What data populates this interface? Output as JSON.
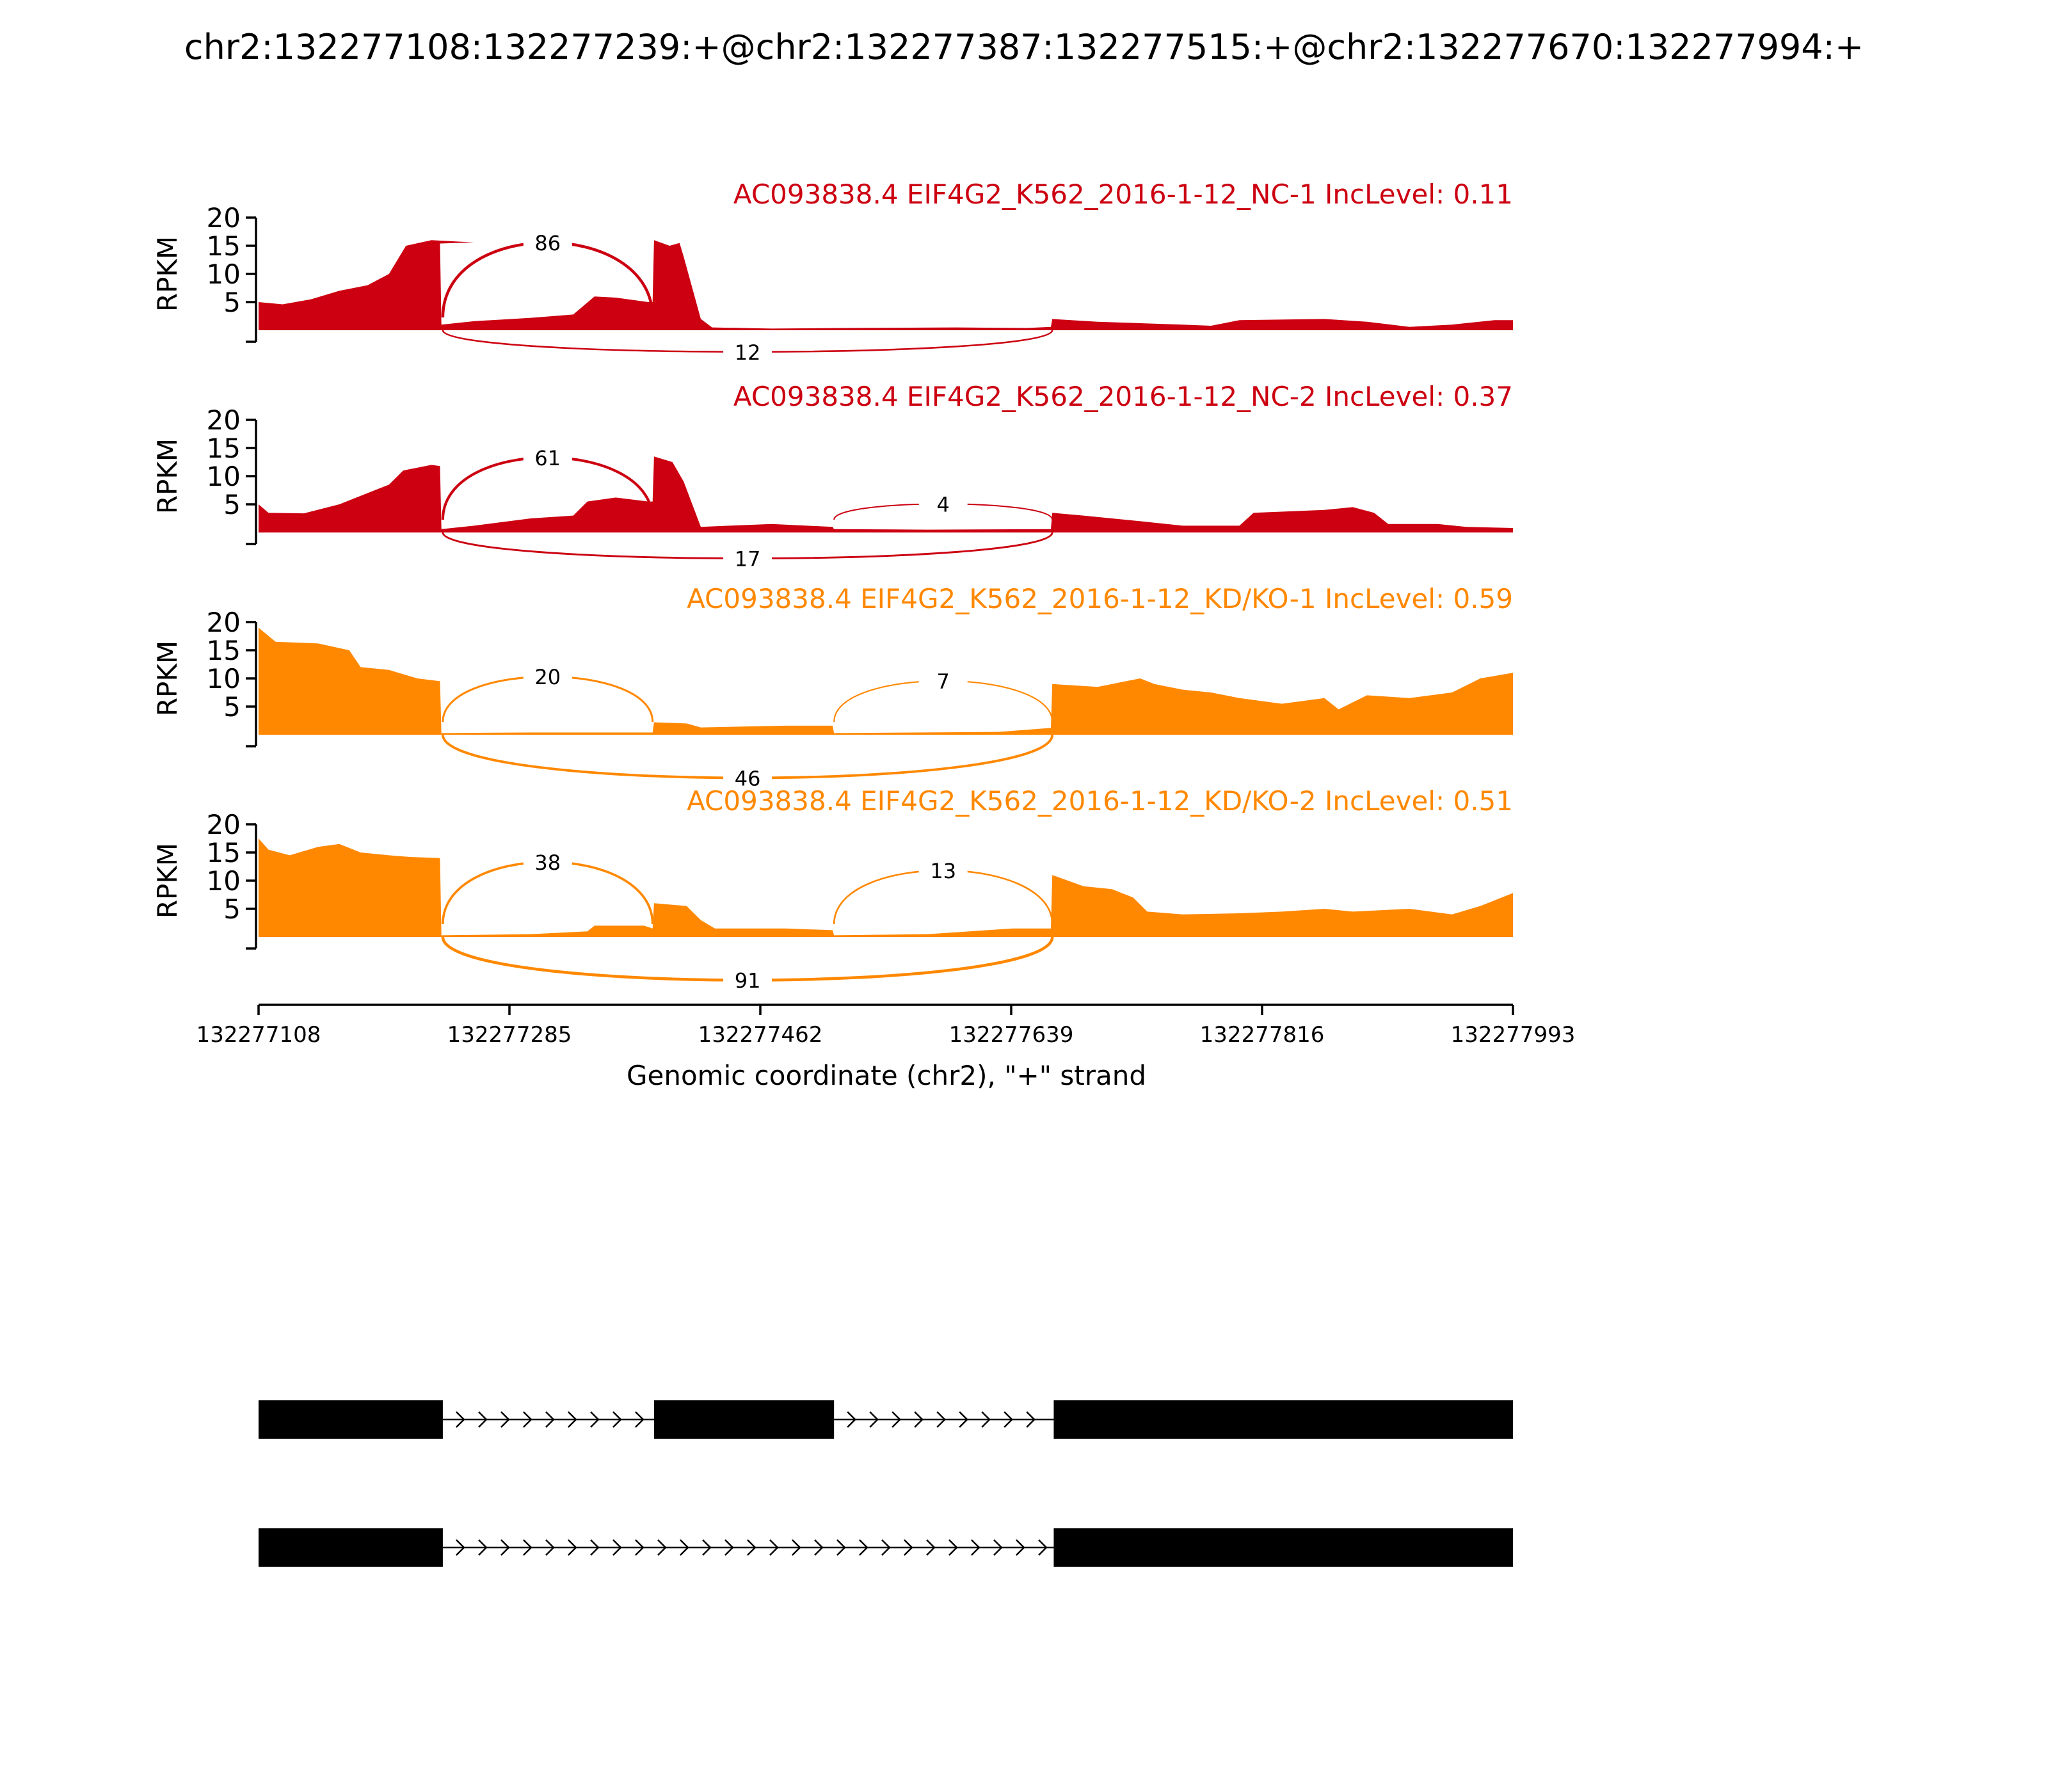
{
  "title": "chr2:132277108:132277239:+@chr2:132277387:132277515:+@chr2:132277670:132277994:+",
  "colors": {
    "nc": "#cc0011",
    "kd": "#ff8800",
    "axis": "#000000"
  },
  "chart_data": {
    "type": "area",
    "title": "chr2:132277108:132277239:+@chr2:132277387:132277515:+@chr2:132277670:132277994:+",
    "xlabel": "Genomic coordinate (chr2), \"+\" strand",
    "ylabel": "RPKM",
    "xlim": [
      132277108,
      132277993
    ],
    "x_ticks": [
      132277108,
      132277285,
      132277462,
      132277639,
      132277816,
      132277993
    ],
    "ylim": [
      0,
      20
    ],
    "y_ticks": [
      5,
      10,
      15,
      20
    ],
    "tracks": [
      {
        "label": "AC093838.4 EIF4G2_K562_2016-1-12_NC-1 IncLevel: 0.11",
        "color": "nc",
        "coverage": [
          [
            132277108,
            5
          ],
          [
            132277125,
            4.6
          ],
          [
            132277145,
            5.5
          ],
          [
            132277165,
            7
          ],
          [
            132277185,
            8
          ],
          [
            132277200,
            10
          ],
          [
            132277212,
            15
          ],
          [
            132277230,
            16
          ],
          [
            132277260,
            15.6
          ],
          [
            132277236,
            15.4
          ],
          [
            132277237,
            1
          ],
          [
            132277260,
            1.6
          ],
          [
            132277300,
            2.2
          ],
          [
            132277330,
            2.8
          ],
          [
            132277345,
            6
          ],
          [
            132277360,
            5.8
          ],
          [
            132277383,
            5
          ],
          [
            132277386,
            5
          ],
          [
            132277387,
            16
          ],
          [
            132277398,
            15
          ],
          [
            132277405,
            15.5
          ],
          [
            132277408,
            13
          ],
          [
            132277420,
            2
          ],
          [
            132277428,
            0.5
          ],
          [
            132277470,
            0.3
          ],
          [
            132277520,
            0.4
          ],
          [
            132277600,
            0.5
          ],
          [
            132277650,
            0.4
          ],
          [
            132277667,
            0.6
          ],
          [
            132277668,
            2
          ],
          [
            132277700,
            1.5
          ],
          [
            132277760,
            1
          ],
          [
            132277780,
            0.8
          ],
          [
            132277800,
            1.8
          ],
          [
            132277860,
            2
          ],
          [
            132277890,
            1.5
          ],
          [
            132277920,
            0.6
          ],
          [
            132277950,
            1
          ],
          [
            132277980,
            1.8
          ],
          [
            132277993,
            1.8
          ]
        ],
        "junctions": [
          {
            "from": 132277238,
            "to": 132277386,
            "count": "86",
            "side": "top",
            "peak": 20
          },
          {
            "from": 132277238,
            "to": 132277668,
            "count": "12",
            "side": "bottom",
            "peak": 5
          }
        ]
      },
      {
        "label": "AC093838.4 EIF4G2_K562_2016-1-12_NC-2 IncLevel: 0.37",
        "color": "nc",
        "coverage": [
          [
            132277108,
            5
          ],
          [
            132277115,
            3.5
          ],
          [
            132277140,
            3.4
          ],
          [
            132277165,
            5
          ],
          [
            132277185,
            7
          ],
          [
            132277200,
            8.5
          ],
          [
            132277210,
            11
          ],
          [
            132277230,
            12
          ],
          [
            132277236,
            11.8
          ],
          [
            132277237,
            0.6
          ],
          [
            132277260,
            1.2
          ],
          [
            132277300,
            2.5
          ],
          [
            132277330,
            3
          ],
          [
            132277340,
            5.5
          ],
          [
            132277360,
            6.2
          ],
          [
            132277383,
            5.5
          ],
          [
            132277386,
            5.5
          ],
          [
            132277387,
            13.5
          ],
          [
            132277400,
            12.5
          ],
          [
            132277408,
            9
          ],
          [
            132277420,
            1
          ],
          [
            132277440,
            1.2
          ],
          [
            132277470,
            1.5
          ],
          [
            132277513,
            1
          ],
          [
            132277514,
            0.6
          ],
          [
            132277580,
            0.5
          ],
          [
            132277667,
            0.6
          ],
          [
            132277668,
            3.5
          ],
          [
            132277690,
            3
          ],
          [
            132277730,
            2
          ],
          [
            132277760,
            1.2
          ],
          [
            132277800,
            1.2
          ],
          [
            132277810,
            3.5
          ],
          [
            132277860,
            4
          ],
          [
            132277880,
            4.5
          ],
          [
            132277895,
            3.5
          ],
          [
            132277905,
            1.5
          ],
          [
            132277940,
            1.5
          ],
          [
            132277960,
            1
          ],
          [
            132277993,
            0.8
          ]
        ],
        "junctions": [
          {
            "from": 132277238,
            "to": 132277386,
            "count": "61",
            "side": "top",
            "peak": 17
          },
          {
            "from": 132277514,
            "to": 132277668,
            "count": "4",
            "side": "top",
            "peak": 6
          },
          {
            "from": 132277238,
            "to": 132277668,
            "count": "17",
            "side": "bottom",
            "peak": 6
          }
        ]
      },
      {
        "label": "AC093838.4 EIF4G2_K562_2016-1-12_KD/KO-1 IncLevel: 0.59",
        "color": "kd",
        "coverage": [
          [
            132277108,
            19
          ],
          [
            132277120,
            16.5
          ],
          [
            132277150,
            16.2
          ],
          [
            132277172,
            15
          ],
          [
            132277180,
            12
          ],
          [
            132277200,
            11.5
          ],
          [
            132277220,
            10
          ],
          [
            132277236,
            9.5
          ],
          [
            132277237,
            0.3
          ],
          [
            132277300,
            0.4
          ],
          [
            132277386,
            0.4
          ],
          [
            132277387,
            2.2
          ],
          [
            132277410,
            2
          ],
          [
            132277420,
            1.3
          ],
          [
            132277460,
            1.5
          ],
          [
            132277480,
            1.6
          ],
          [
            132277513,
            1.6
          ],
          [
            132277514,
            0.3
          ],
          [
            132277630,
            0.5
          ],
          [
            132277667,
            1.2
          ],
          [
            132277668,
            9
          ],
          [
            132277700,
            8.5
          ],
          [
            132277720,
            9.5
          ],
          [
            132277730,
            10
          ],
          [
            132277740,
            9
          ],
          [
            132277760,
            8
          ],
          [
            132277780,
            7.5
          ],
          [
            132277800,
            6.5
          ],
          [
            132277830,
            5.5
          ],
          [
            132277860,
            6.5
          ],
          [
            132277870,
            4.5
          ],
          [
            132277890,
            7
          ],
          [
            132277920,
            6.5
          ],
          [
            132277950,
            7.5
          ],
          [
            132277970,
            10
          ],
          [
            132277993,
            11
          ]
        ],
        "junctions": [
          {
            "from": 132277238,
            "to": 132277386,
            "count": "20",
            "side": "top",
            "peak": 13
          },
          {
            "from": 132277514,
            "to": 132277668,
            "count": "7",
            "side": "top",
            "peak": 12
          },
          {
            "from": 132277238,
            "to": 132277668,
            "count": "46",
            "side": "bottom",
            "peak": 10
          }
        ]
      },
      {
        "label": "AC093838.4 EIF4G2_K562_2016-1-12_KD/KO-2 IncLevel: 0.51",
        "color": "kd",
        "coverage": [
          [
            132277108,
            17.5
          ],
          [
            132277115,
            15.5
          ],
          [
            132277130,
            14.5
          ],
          [
            132277150,
            16
          ],
          [
            132277165,
            16.5
          ],
          [
            132277180,
            15
          ],
          [
            132277200,
            14.5
          ],
          [
            132277215,
            14.2
          ],
          [
            132277236,
            14
          ],
          [
            132277237,
            0.3
          ],
          [
            132277300,
            0.5
          ],
          [
            132277340,
            1
          ],
          [
            132277345,
            2
          ],
          [
            132277380,
            2
          ],
          [
            132277386,
            1.5
          ],
          [
            132277387,
            6
          ],
          [
            132277410,
            5.5
          ],
          [
            132277420,
            3
          ],
          [
            132277430,
            1.5
          ],
          [
            132277480,
            1.5
          ],
          [
            132277513,
            1.2
          ],
          [
            132277514,
            0.3
          ],
          [
            132277580,
            0.5
          ],
          [
            132277640,
            1.5
          ],
          [
            132277667,
            1.5
          ],
          [
            132277668,
            11
          ],
          [
            132277690,
            9
          ],
          [
            132277710,
            8.5
          ],
          [
            132277725,
            7
          ],
          [
            132277735,
            4.5
          ],
          [
            132277760,
            4
          ],
          [
            132277800,
            4.2
          ],
          [
            132277830,
            4.5
          ],
          [
            132277860,
            5
          ],
          [
            132277880,
            4.5
          ],
          [
            132277920,
            5
          ],
          [
            132277950,
            4
          ],
          [
            132277970,
            5.5
          ],
          [
            132277993,
            7.8
          ]
        ],
        "junctions": [
          {
            "from": 132277238,
            "to": 132277386,
            "count": "38",
            "side": "top",
            "peak": 17
          },
          {
            "from": 132277514,
            "to": 132277668,
            "count": "13",
            "side": "top",
            "peak": 15
          },
          {
            "from": 132277238,
            "to": 132277668,
            "count": "91",
            "side": "bottom",
            "peak": 10
          }
        ]
      }
    ],
    "isoforms": [
      {
        "exons": [
          [
            132277108,
            132277238
          ],
          [
            132277387,
            132277514
          ],
          [
            132277669,
            132277993
          ]
        ]
      },
      {
        "exons": [
          [
            132277108,
            132277238
          ],
          [
            132277669,
            132277993
          ]
        ]
      }
    ]
  }
}
